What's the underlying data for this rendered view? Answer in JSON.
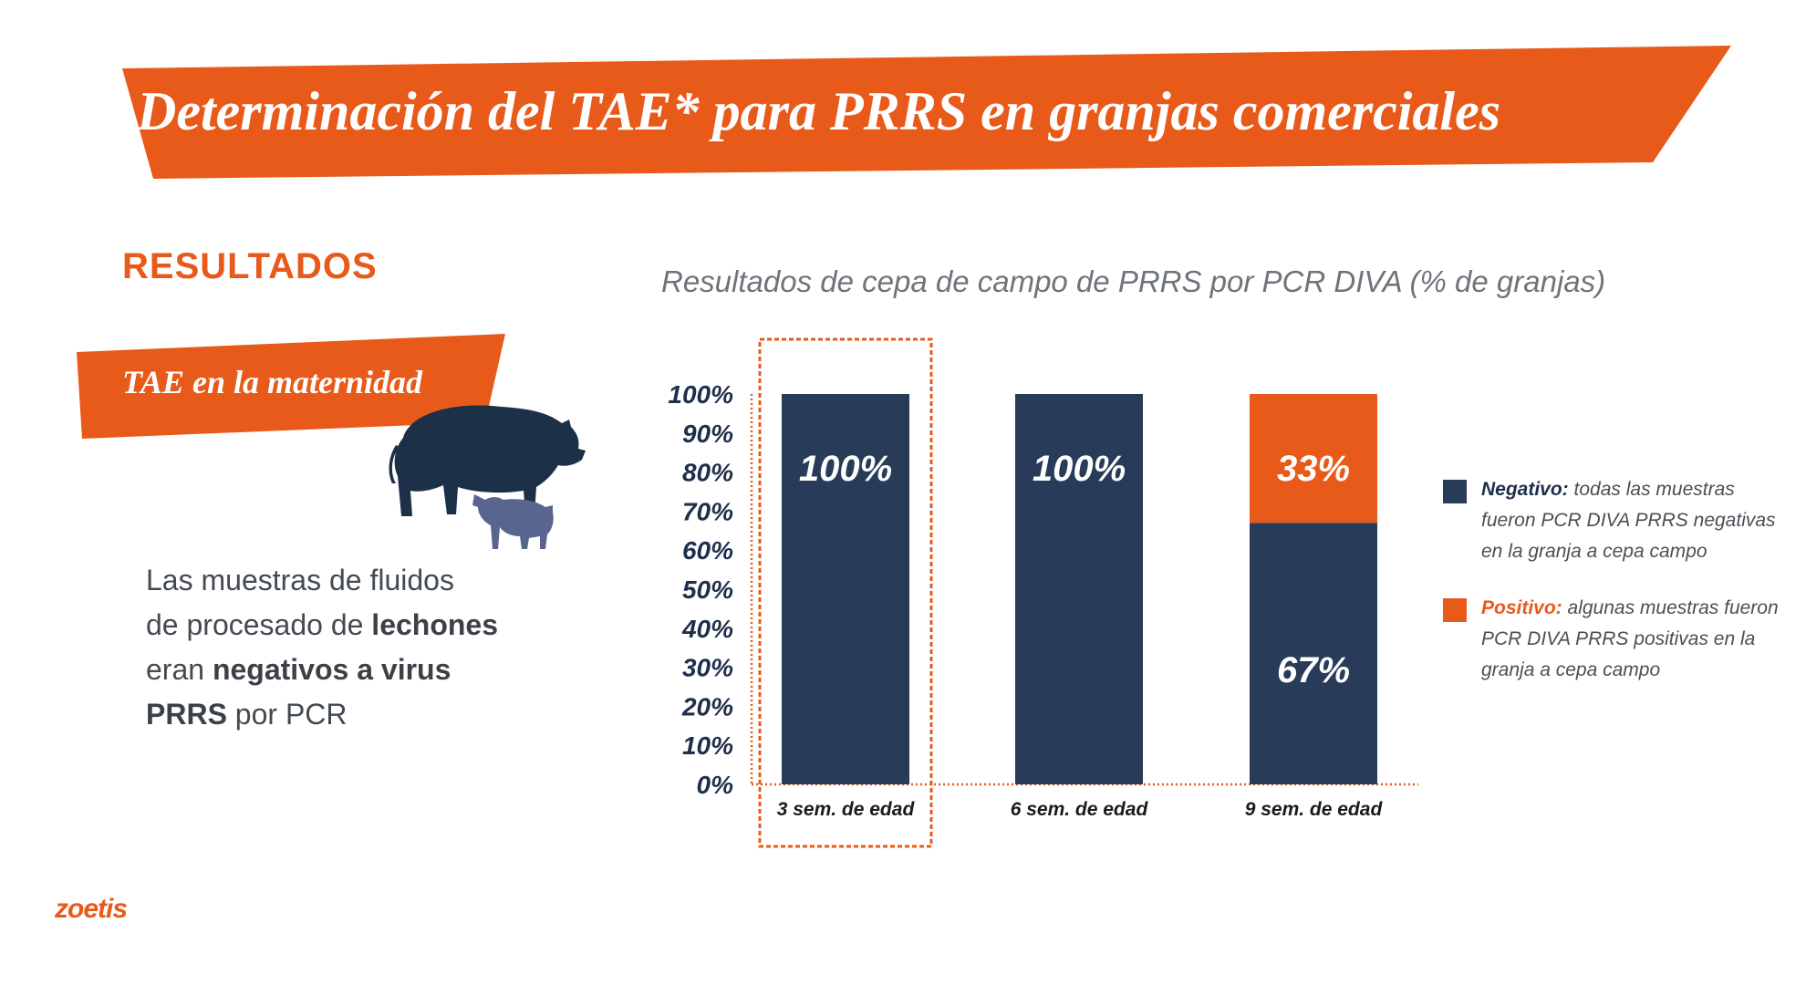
{
  "header": {
    "title": "Determinación del TAE*  para PRRS en granjas comerciales"
  },
  "section": {
    "heading": "RESULTADOS"
  },
  "subsection": {
    "label": "TAE en la maternidad"
  },
  "description": {
    "segments": [
      {
        "text": "Las muestras de fluidos",
        "bold": false
      },
      {
        "br": true
      },
      {
        "text": "de procesado de ",
        "bold": false
      },
      {
        "text": "lechones",
        "bold": true
      },
      {
        "br": true
      },
      {
        "text": "eran ",
        "bold": false
      },
      {
        "text": "negativos a virus",
        "bold": true
      },
      {
        "br": true
      },
      {
        "text": "PRRS",
        "bold": true
      },
      {
        "text": " por PCR",
        "bold": false
      }
    ]
  },
  "chart_data": {
    "type": "bar",
    "stacked": true,
    "title": "Resultados de cepa de campo de PRRS por PCR DIVA (% de granjas)",
    "categories": [
      "3 sem. de edad",
      "6 sem. de edad",
      "9 sem. de edad"
    ],
    "series": [
      {
        "name": "Negativo",
        "values": [
          100,
          100,
          67
        ],
        "data_labels": [
          "100%",
          "100%",
          "67%"
        ],
        "color": "#283b58"
      },
      {
        "name": "Positivo",
        "values": [
          0,
          0,
          33
        ],
        "data_labels": [
          "",
          "",
          "33%"
        ],
        "color": "#e85a1a"
      }
    ],
    "ylim": [
      0,
      100
    ],
    "yticks": [
      "0%",
      "10%",
      "20%",
      "30%",
      "40%",
      "50%",
      "60%",
      "70%",
      "80%",
      "90%",
      "100%"
    ],
    "highlighted_category": "3 sem. de edad",
    "legend_position": "right",
    "grid": false
  },
  "legend": {
    "items": [
      {
        "key": "Negativo:",
        "text": " todas las muestras fueron PCR DIVA PRRS negativas en la granja a cepa campo",
        "color": "#283b58",
        "key_color": "#1f2f4b"
      },
      {
        "key": "Positivo:",
        "text": " algunas muestras fueron PCR DIVA PRRS positivas en la granja a cepa campo",
        "color": "#e85a1a",
        "key_color": "#e85a1a"
      }
    ]
  },
  "brand": {
    "logo": "zoetis"
  },
  "colors": {
    "accent": "#e85a1a",
    "navy": "#283b58",
    "pig_dark": "#1c3048",
    "pig_light": "#59658f"
  },
  "icons": {
    "pigs": "sow-and-piglet-icon"
  }
}
